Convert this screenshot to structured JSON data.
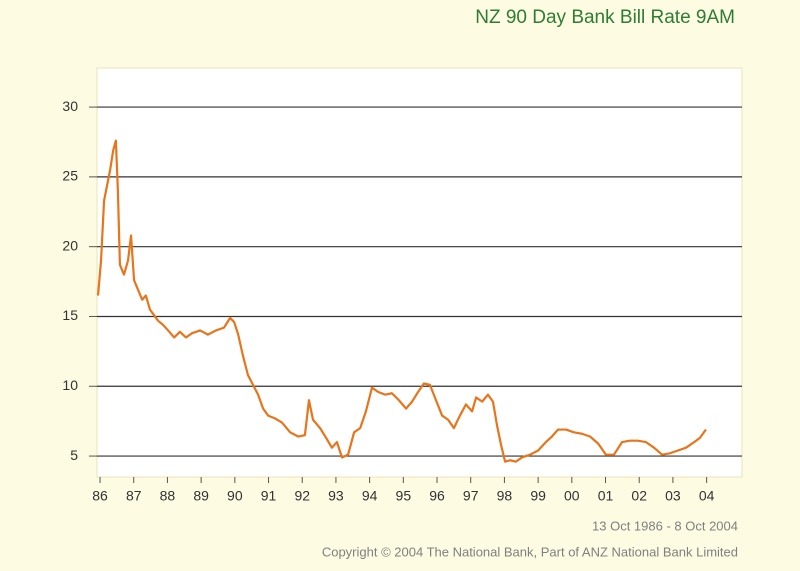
{
  "chart_data": {
    "type": "line",
    "title": "NZ 90 Day Bank Bill Rate 9AM",
    "subtitle": "13 Oct 1986 - 8 Oct 2004",
    "footer": "Copyright © 2004 The National Bank, Part of ANZ National Bank Limited",
    "x": [
      1985.94,
      1986.03,
      1986.12,
      1986.21,
      1986.3,
      1986.39,
      1986.47,
      1986.53,
      1986.59,
      1986.71,
      1986.83,
      1986.92,
      1987.01,
      1987.13,
      1987.25,
      1987.36,
      1987.48,
      1987.6,
      1987.72,
      1987.87,
      1988.02,
      1988.2,
      1988.37,
      1988.55,
      1988.73,
      1988.97,
      1989.2,
      1989.44,
      1989.68,
      1989.86,
      1989.98,
      1990.1,
      1990.24,
      1990.39,
      1990.54,
      1990.69,
      1990.84,
      1990.99,
      1991.19,
      1991.4,
      1991.64,
      1991.88,
      1992.08,
      1992.2,
      1992.32,
      1992.53,
      1992.71,
      1992.88,
      1993.03,
      1993.18,
      1993.36,
      1993.54,
      1993.72,
      1993.89,
      1994.07,
      1994.25,
      1994.46,
      1994.66,
      1994.87,
      1995.08,
      1995.26,
      1995.44,
      1995.61,
      1995.79,
      1995.97,
      1996.15,
      1996.33,
      1996.5,
      1996.68,
      1996.86,
      1997.04,
      1997.16,
      1997.34,
      1997.51,
      1997.66,
      1997.78,
      1997.9,
      1998.02,
      1998.17,
      1998.34,
      1998.52,
      1998.76,
      1999.0,
      1999.23,
      1999.41,
      1999.59,
      1999.83,
      2000.06,
      2000.3,
      2000.54,
      2000.78,
      2001.01,
      2001.25,
      2001.49,
      2001.72,
      2001.96,
      2002.2,
      2002.44,
      2002.68,
      2002.91,
      2003.15,
      2003.39,
      2003.63,
      2003.8,
      2003.98
    ],
    "series": [
      {
        "name": "90 Day Bank Bill Rate",
        "color": "#e8741c",
        "values": [
          16.5,
          19.0,
          23.3,
          24.4,
          25.5,
          26.9,
          27.6,
          24.0,
          18.7,
          18.0,
          19.0,
          20.8,
          17.6,
          16.9,
          16.2,
          16.5,
          15.5,
          15.1,
          14.7,
          14.4,
          14.0,
          13.5,
          13.9,
          13.5,
          13.8,
          14.0,
          13.7,
          14.0,
          14.2,
          14.9,
          14.6,
          13.7,
          12.2,
          10.8,
          10.1,
          9.4,
          8.4,
          7.9,
          7.7,
          7.4,
          6.7,
          6.4,
          6.5,
          9.0,
          7.6,
          7.0,
          6.3,
          5.6,
          6.0,
          4.9,
          5.1,
          6.7,
          7.0,
          8.2,
          9.9,
          9.6,
          9.4,
          9.5,
          9.0,
          8.4,
          8.9,
          9.6,
          10.2,
          10.1,
          9.0,
          7.9,
          7.6,
          7.0,
          7.9,
          8.7,
          8.2,
          9.2,
          8.9,
          9.4,
          8.9,
          7.2,
          5.8,
          4.6,
          4.7,
          4.6,
          4.9,
          5.1,
          5.4,
          6.0,
          6.4,
          6.9,
          6.9,
          6.7,
          6.6,
          6.4,
          5.9,
          5.1,
          5.1,
          6.0,
          6.1,
          6.1,
          6.0,
          5.6,
          5.1,
          5.2,
          5.4,
          5.6,
          6.0,
          6.3,
          6.9
        ]
      }
    ],
    "xlim": [
      1985.91,
      2005.05
    ],
    "xticks": [
      {
        "value": 1986,
        "label": "86"
      },
      {
        "value": 1987,
        "label": "87"
      },
      {
        "value": 1988,
        "label": "88"
      },
      {
        "value": 1989,
        "label": "89"
      },
      {
        "value": 1990,
        "label": "90"
      },
      {
        "value": 1991,
        "label": "91"
      },
      {
        "value": 1992,
        "label": "92"
      },
      {
        "value": 1993,
        "label": "93"
      },
      {
        "value": 1994,
        "label": "94"
      },
      {
        "value": 1995,
        "label": "95"
      },
      {
        "value": 1996,
        "label": "96"
      },
      {
        "value": 1997,
        "label": "97"
      },
      {
        "value": 1998,
        "label": "98"
      },
      {
        "value": 1999,
        "label": "99"
      },
      {
        "value": 2000,
        "label": "00"
      },
      {
        "value": 2001,
        "label": "01"
      },
      {
        "value": 2002,
        "label": "02"
      },
      {
        "value": 2003,
        "label": "03"
      },
      {
        "value": 2004,
        "label": "04"
      }
    ],
    "ylim": [
      3.5,
      32.8
    ],
    "yticks": [
      5,
      10,
      15,
      20,
      25,
      30
    ],
    "grid": true
  }
}
